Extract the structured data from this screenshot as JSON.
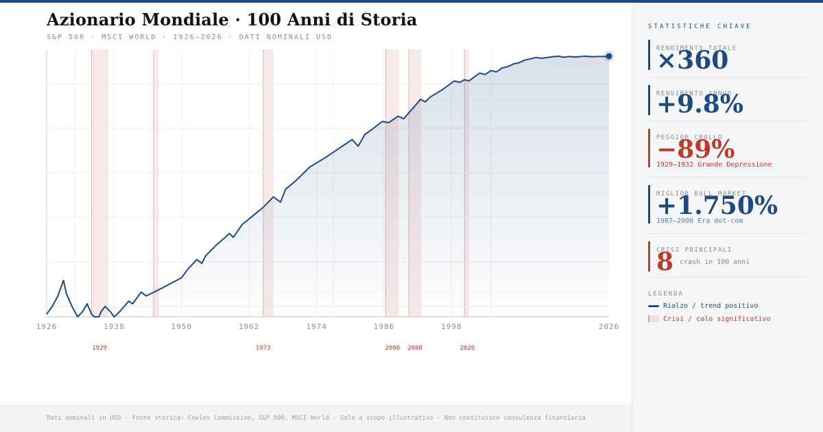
{
  "header": {
    "title": "Azionario Mondiale · 100 Anni di Storia",
    "subtitle": "S&P 500 · MSCI WORLD · 1926–2026 · DATI NOMINALI USD"
  },
  "sidebar": {
    "heading": "STATISTICHE CHIAVE",
    "stats": [
      {
        "label": "RENDIMENTO TOTALE",
        "value": "×360",
        "note": ""
      },
      {
        "label": "RENDIMENTO ANNUO",
        "value": "+9.8%",
        "note": ""
      },
      {
        "label": "PEGGIOR CROLLO",
        "value": "−89%",
        "note": "1929–1932 Grande Depressione"
      },
      {
        "label": "MIGLIOR BULL MARKET",
        "value": "+1.750%",
        "note": "1987–2000 Era dot-com"
      },
      {
        "label": "CRISI PRINCIPALI",
        "value": "8",
        "note": "crash in 100 anni"
      }
    ],
    "legend_heading": "LEGENDA",
    "legend": [
      {
        "label": "Rialzo / trend positivo"
      },
      {
        "label": "Crisi / calo significativo"
      }
    ]
  },
  "footer": {
    "text": "Dati nominali in USD · Fonte storica: Cowles Commission, S&P 500, MSCI World · Solo a scopo illustrativo · Non costituisce consulenza finanziaria"
  },
  "colors": {
    "accent": "#1e4a82",
    "crisis": "#c0392b",
    "crisis_band": "#f9eaea"
  },
  "chart_data": {
    "type": "area",
    "xlim": [
      1926,
      2026
    ],
    "ylim": [
      0,
      1
    ],
    "x_ticks": [
      "1926",
      "1938",
      "1950",
      "1962",
      "1974",
      "1986",
      "1998",
      "2026"
    ],
    "x_tick_values": [
      1926,
      1938,
      1950,
      1962,
      1974,
      1986,
      1998,
      2026
    ],
    "grid": true,
    "crisis_bands": [
      {
        "start": 1934,
        "end": 1937
      },
      {
        "start": 1945,
        "end": 1946
      },
      {
        "start": 1964.5,
        "end": 1966.3
      },
      {
        "start": 1986.3,
        "end": 1988.6
      },
      {
        "start": 1990.4,
        "end": 1992.6
      },
      {
        "start": 2000.3,
        "end": 2001.1
      }
    ],
    "crisis_markers": [
      {
        "label": "1929",
        "x": 1935.4
      },
      {
        "label": "1973",
        "x": 1964.5
      },
      {
        "label": "2000",
        "x": 1987.5
      },
      {
        "label": "2008",
        "x": 1991.5
      },
      {
        "label": "2020",
        "x": 2000.8
      }
    ],
    "series": [
      {
        "points": [
          [
            1926,
            0.01
          ],
          [
            1927,
            0.04
          ],
          [
            1928,
            0.08
          ],
          [
            1929,
            0.14
          ],
          [
            1929.5,
            0.09
          ],
          [
            1930.5,
            0.04
          ],
          [
            1931.5,
            0.0
          ],
          [
            1932.4,
            0.02
          ],
          [
            1933.2,
            0.05
          ],
          [
            1934,
            0.01
          ],
          [
            1934.5,
            0.0
          ],
          [
            1935.3,
            0.0
          ],
          [
            1935.7,
            0.02
          ],
          [
            1936.4,
            0.04
          ],
          [
            1937.3,
            0.02
          ],
          [
            1938,
            0.0
          ],
          [
            1939,
            0.02
          ],
          [
            1940.6,
            0.06
          ],
          [
            1941.3,
            0.05
          ],
          [
            1942.8,
            0.095
          ],
          [
            1943.7,
            0.08
          ],
          [
            1946.5,
            0.11
          ],
          [
            1950,
            0.15
          ],
          [
            1951,
            0.18
          ],
          [
            1952.7,
            0.22
          ],
          [
            1953.6,
            0.205
          ],
          [
            1954.3,
            0.235
          ],
          [
            1956.4,
            0.28
          ],
          [
            1957.5,
            0.3
          ],
          [
            1958.5,
            0.32
          ],
          [
            1959.2,
            0.305
          ],
          [
            1960.8,
            0.355
          ],
          [
            1962.8,
            0.39
          ],
          [
            1964.5,
            0.42
          ],
          [
            1966.3,
            0.46
          ],
          [
            1967.6,
            0.44
          ],
          [
            1968.5,
            0.49
          ],
          [
            1970.2,
            0.52
          ],
          [
            1972.8,
            0.575
          ],
          [
            1975.5,
            0.61
          ],
          [
            1978.6,
            0.655
          ],
          [
            1980.3,
            0.68
          ],
          [
            1981.4,
            0.655
          ],
          [
            1982.6,
            0.7
          ],
          [
            1983.9,
            0.72
          ],
          [
            1985.7,
            0.75
          ],
          [
            1986.8,
            0.745
          ],
          [
            1988.5,
            0.77
          ],
          [
            1989.5,
            0.76
          ],
          [
            1990.5,
            0.785
          ],
          [
            1992.5,
            0.835
          ],
          [
            1993.3,
            0.825
          ],
          [
            1994.3,
            0.845
          ],
          [
            1995.5,
            0.86
          ],
          [
            1996.6,
            0.875
          ],
          [
            1997.5,
            0.89
          ],
          [
            1998.5,
            0.905
          ],
          [
            1999.5,
            0.9
          ],
          [
            2000.3,
            0.91
          ],
          [
            2001.1,
            0.905
          ],
          [
            2002,
            0.92
          ],
          [
            2003,
            0.935
          ],
          [
            2004,
            0.93
          ],
          [
            2005,
            0.945
          ],
          [
            2006,
            0.94
          ],
          [
            2007,
            0.955
          ],
          [
            2008,
            0.96
          ],
          [
            2009,
            0.97
          ],
          [
            2010,
            0.975
          ],
          [
            2011,
            0.985
          ],
          [
            2012,
            0.99
          ],
          [
            2013,
            0.995
          ],
          [
            2014,
            0.992
          ],
          [
            2015,
            0.995
          ],
          [
            2016,
            0.998
          ],
          [
            2017,
            1.0
          ],
          [
            2018,
            0.996
          ],
          [
            2019,
            0.999
          ],
          [
            2020,
            0.997
          ],
          [
            2021,
            0.999
          ],
          [
            2022,
            1.0
          ],
          [
            2023,
            0.998
          ],
          [
            2024,
            0.999
          ],
          [
            2025,
            0.999
          ],
          [
            2026,
            1.0
          ]
        ]
      }
    ]
  }
}
